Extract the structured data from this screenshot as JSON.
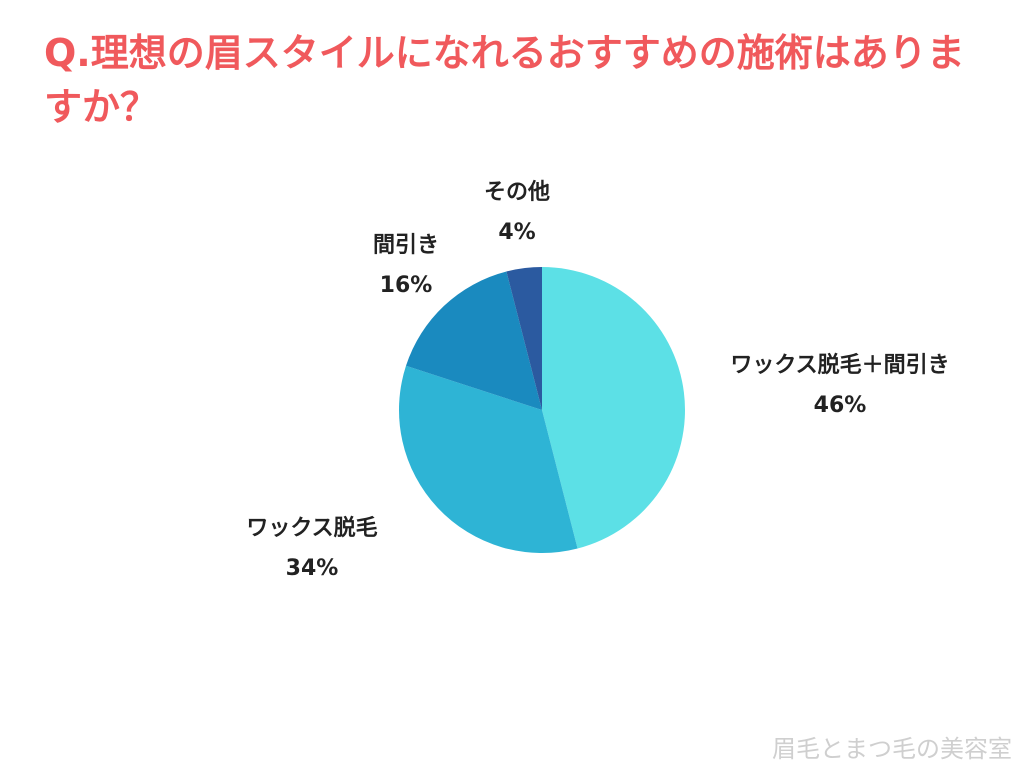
{
  "chart_data": {
    "type": "pie",
    "title": "Q.理想の眉スタイルになれるおすすめの施術はありますか？",
    "categories": [
      "ワックス脱毛＋間引き",
      "ワックス脱毛",
      "間引き",
      "その他"
    ],
    "values": [
      46,
      34,
      16,
      4
    ],
    "value_labels": [
      "46%",
      "34%",
      "16%",
      "4%"
    ],
    "colors": [
      "#5ce0e6",
      "#2eb4d5",
      "#1a8abf",
      "#2b5aa0"
    ]
  },
  "watermark": "眉毛とまつ毛の美容室"
}
